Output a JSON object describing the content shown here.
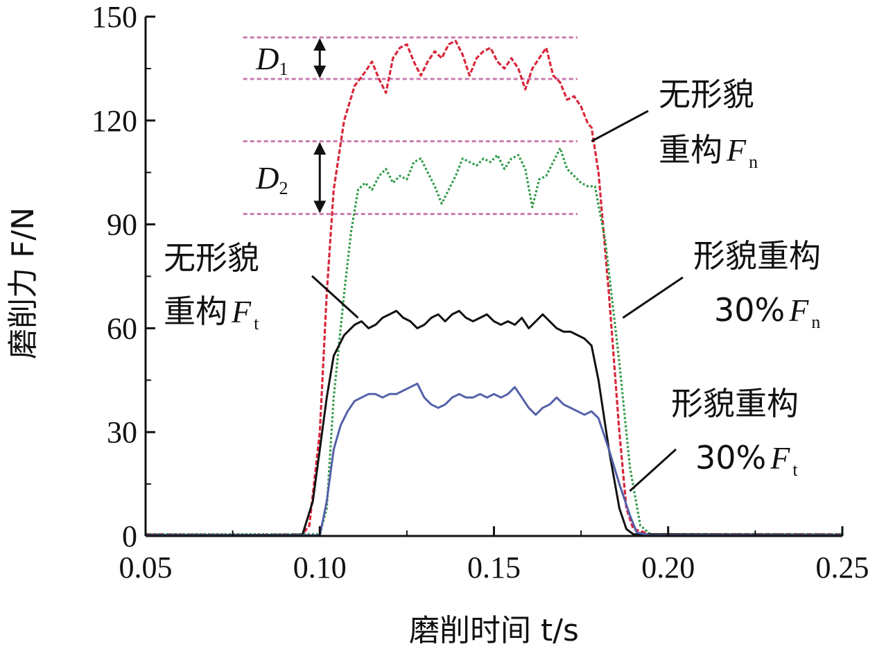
{
  "chart_data": {
    "type": "line",
    "xlabel": "磨削时间 t/s",
    "ylabel": "磨削力 F/N",
    "xlim": [
      0.05,
      0.25
    ],
    "ylim": [
      0,
      150
    ],
    "xticks": [
      "0.05",
      "0.10",
      "0.15",
      "0.20",
      "0.25"
    ],
    "yticks": [
      "0",
      "30",
      "60",
      "90",
      "120",
      "150"
    ],
    "grid": false,
    "series": [
      {
        "name": "无形貌重构 Fn",
        "color": "#d9263a",
        "style": "dashed",
        "points": [
          [
            0.05,
            0.5
          ],
          [
            0.08,
            0.3
          ],
          [
            0.095,
            0.5
          ],
          [
            0.097,
            3
          ],
          [
            0.1,
            30
          ],
          [
            0.102,
            70
          ],
          [
            0.104,
            100
          ],
          [
            0.107,
            120
          ],
          [
            0.11,
            130
          ],
          [
            0.113,
            134
          ],
          [
            0.115,
            137
          ],
          [
            0.117,
            132
          ],
          [
            0.119,
            128
          ],
          [
            0.121,
            138
          ],
          [
            0.123,
            141
          ],
          [
            0.125,
            142
          ],
          [
            0.127,
            137
          ],
          [
            0.129,
            133
          ],
          [
            0.131,
            137
          ],
          [
            0.133,
            140
          ],
          [
            0.135,
            138
          ],
          [
            0.137,
            142
          ],
          [
            0.139,
            143
          ],
          [
            0.141,
            139
          ],
          [
            0.143,
            133
          ],
          [
            0.145,
            138
          ],
          [
            0.147,
            140
          ],
          [
            0.149,
            141
          ],
          [
            0.151,
            137
          ],
          [
            0.153,
            135
          ],
          [
            0.155,
            138
          ],
          [
            0.157,
            135
          ],
          [
            0.159,
            129
          ],
          [
            0.161,
            135
          ],
          [
            0.163,
            138
          ],
          [
            0.165,
            141
          ],
          [
            0.167,
            133
          ],
          [
            0.169,
            131
          ],
          [
            0.171,
            126
          ],
          [
            0.173,
            127
          ],
          [
            0.175,
            124
          ],
          [
            0.177,
            119
          ],
          [
            0.178,
            118
          ],
          [
            0.18,
            105
          ],
          [
            0.183,
            70
          ],
          [
            0.186,
            30
          ],
          [
            0.188,
            8
          ],
          [
            0.19,
            2
          ],
          [
            0.195,
            0.5
          ],
          [
            0.25,
            0.5
          ]
        ]
      },
      {
        "name": "形貌重构 30% Fn",
        "color": "#2e9a46",
        "style": "dotted",
        "points": [
          [
            0.05,
            0.5
          ],
          [
            0.1,
            0.5
          ],
          [
            0.102,
            8
          ],
          [
            0.104,
            40
          ],
          [
            0.107,
            70
          ],
          [
            0.109,
            88
          ],
          [
            0.111,
            100
          ],
          [
            0.113,
            102
          ],
          [
            0.115,
            100
          ],
          [
            0.117,
            104
          ],
          [
            0.119,
            106
          ],
          [
            0.121,
            102
          ],
          [
            0.123,
            104
          ],
          [
            0.125,
            103
          ],
          [
            0.127,
            108
          ],
          [
            0.129,
            109
          ],
          [
            0.131,
            105
          ],
          [
            0.133,
            101
          ],
          [
            0.135,
            96
          ],
          [
            0.137,
            100
          ],
          [
            0.139,
            104
          ],
          [
            0.141,
            109
          ],
          [
            0.143,
            108
          ],
          [
            0.145,
            107
          ],
          [
            0.147,
            109
          ],
          [
            0.149,
            108
          ],
          [
            0.151,
            110
          ],
          [
            0.153,
            106
          ],
          [
            0.155,
            109
          ],
          [
            0.157,
            110
          ],
          [
            0.159,
            106
          ],
          [
            0.161,
            95
          ],
          [
            0.163,
            103
          ],
          [
            0.165,
            104
          ],
          [
            0.167,
            108
          ],
          [
            0.169,
            112
          ],
          [
            0.171,
            106
          ],
          [
            0.173,
            104
          ],
          [
            0.175,
            102
          ],
          [
            0.177,
            101
          ],
          [
            0.179,
            101
          ],
          [
            0.182,
            85
          ],
          [
            0.186,
            50
          ],
          [
            0.189,
            20
          ],
          [
            0.192,
            3
          ],
          [
            0.195,
            0.5
          ],
          [
            0.25,
            0.5
          ]
        ]
      },
      {
        "name": "无形貌重构 Ft",
        "color": "#111111",
        "style": "solid",
        "points": [
          [
            0.05,
            0.3
          ],
          [
            0.095,
            0.3
          ],
          [
            0.098,
            10
          ],
          [
            0.1,
            25
          ],
          [
            0.102,
            40
          ],
          [
            0.104,
            52
          ],
          [
            0.107,
            58
          ],
          [
            0.11,
            61
          ],
          [
            0.112,
            62
          ],
          [
            0.114,
            60
          ],
          [
            0.116,
            61
          ],
          [
            0.118,
            63
          ],
          [
            0.12,
            64
          ],
          [
            0.122,
            65
          ],
          [
            0.124,
            63
          ],
          [
            0.126,
            62
          ],
          [
            0.128,
            60
          ],
          [
            0.13,
            61
          ],
          [
            0.132,
            63
          ],
          [
            0.134,
            64
          ],
          [
            0.136,
            62
          ],
          [
            0.138,
            64
          ],
          [
            0.14,
            65
          ],
          [
            0.142,
            63
          ],
          [
            0.144,
            62
          ],
          [
            0.146,
            63
          ],
          [
            0.148,
            64
          ],
          [
            0.15,
            62
          ],
          [
            0.152,
            61
          ],
          [
            0.154,
            62
          ],
          [
            0.156,
            61
          ],
          [
            0.158,
            63
          ],
          [
            0.16,
            60
          ],
          [
            0.162,
            62
          ],
          [
            0.164,
            64
          ],
          [
            0.166,
            62
          ],
          [
            0.168,
            60
          ],
          [
            0.17,
            59
          ],
          [
            0.172,
            59
          ],
          [
            0.174,
            58
          ],
          [
            0.176,
            57
          ],
          [
            0.178,
            55
          ],
          [
            0.18,
            45
          ],
          [
            0.183,
            25
          ],
          [
            0.186,
            8
          ],
          [
            0.188,
            2
          ],
          [
            0.19,
            0.5
          ],
          [
            0.25,
            0.3
          ]
        ]
      },
      {
        "name": "形貌重构 30% Ft",
        "color": "#5360a8",
        "style": "solid",
        "points": [
          [
            0.05,
            0.2
          ],
          [
            0.1,
            0.2
          ],
          [
            0.102,
            10
          ],
          [
            0.104,
            25
          ],
          [
            0.106,
            32
          ],
          [
            0.108,
            36
          ],
          [
            0.11,
            39
          ],
          [
            0.112,
            40
          ],
          [
            0.114,
            41
          ],
          [
            0.116,
            41
          ],
          [
            0.118,
            40
          ],
          [
            0.12,
            41
          ],
          [
            0.122,
            41
          ],
          [
            0.124,
            42
          ],
          [
            0.126,
            43
          ],
          [
            0.128,
            44
          ],
          [
            0.13,
            40
          ],
          [
            0.132,
            38
          ],
          [
            0.134,
            37
          ],
          [
            0.136,
            38
          ],
          [
            0.138,
            40
          ],
          [
            0.14,
            41
          ],
          [
            0.142,
            40
          ],
          [
            0.144,
            40
          ],
          [
            0.146,
            41
          ],
          [
            0.148,
            40
          ],
          [
            0.15,
            41
          ],
          [
            0.152,
            40
          ],
          [
            0.154,
            41
          ],
          [
            0.156,
            43
          ],
          [
            0.158,
            40
          ],
          [
            0.16,
            37
          ],
          [
            0.162,
            35
          ],
          [
            0.164,
            37
          ],
          [
            0.166,
            38
          ],
          [
            0.168,
            40
          ],
          [
            0.17,
            38
          ],
          [
            0.172,
            37
          ],
          [
            0.174,
            36
          ],
          [
            0.176,
            35
          ],
          [
            0.178,
            36
          ],
          [
            0.18,
            34
          ],
          [
            0.183,
            25
          ],
          [
            0.186,
            15
          ],
          [
            0.189,
            6
          ],
          [
            0.191,
            1
          ],
          [
            0.195,
            0.2
          ],
          [
            0.25,
            0.2
          ]
        ]
      }
    ],
    "reference_lines": [
      {
        "y": 144,
        "x": [
          0.078,
          0.174
        ]
      },
      {
        "y": 132,
        "x": [
          0.078,
          0.174
        ]
      },
      {
        "y": 114,
        "x": [
          0.078,
          0.174
        ]
      },
      {
        "y": 93,
        "x": [
          0.078,
          0.174
        ]
      }
    ],
    "ref_line_color": "#c97ab0",
    "dimensions": [
      {
        "label": "D",
        "sub": "1",
        "x": 0.1,
        "y": [
          132,
          144
        ]
      },
      {
        "label": "D",
        "sub": "2",
        "x": 0.1,
        "y": [
          93,
          114
        ]
      }
    ],
    "annotations": [
      {
        "lines": [
          {
            "text": "无形貌"
          },
          {
            "text": "重构",
            "var": "F",
            "sub": "n"
          }
        ],
        "point": [
          0.178,
          114
        ]
      },
      {
        "lines": [
          {
            "text": "形貌重构"
          },
          {
            "text": "30%",
            "var": "F",
            "sub": "n"
          }
        ],
        "point": [
          0.187,
          63
        ]
      },
      {
        "lines": [
          {
            "text": "无形貌"
          },
          {
            "text": "重构",
            "var": "F",
            "sub": "t"
          }
        ],
        "point": [
          0.111,
          63
        ]
      },
      {
        "lines": [
          {
            "text": "形貌重构"
          },
          {
            "text": "30%",
            "var": "F",
            "sub": "t"
          }
        ],
        "point": [
          0.189,
          13
        ]
      }
    ]
  }
}
